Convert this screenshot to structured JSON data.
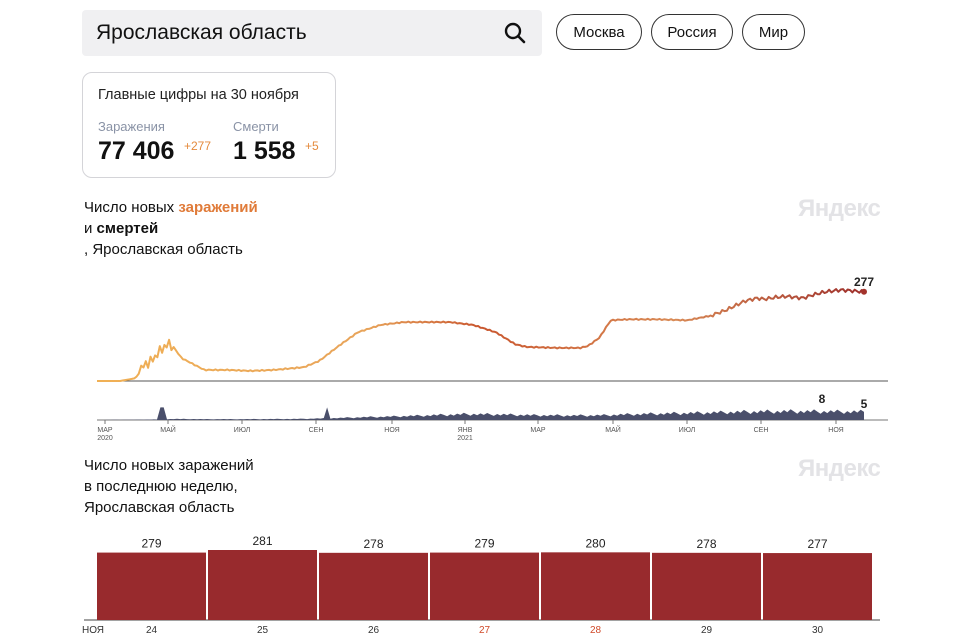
{
  "search": {
    "query": "Ярославская область"
  },
  "regions": [
    "Москва",
    "Россия",
    "Мир"
  ],
  "summary": {
    "title": "Главные цифры на 30 ноября",
    "infections_label": "Заражения",
    "infections_value": "77 406",
    "infections_delta": "+277",
    "deaths_label": "Смерти",
    "deaths_value": "1 558",
    "deaths_delta": "+5"
  },
  "chart1": {
    "title_prefix": "Число новых ",
    "title_accent": "заражений",
    "title_line2_prefix": "и ",
    "title_line2_bold": "смертей",
    "title_line3": ", Ярославская область",
    "brand": "Яндекс"
  },
  "chart2": {
    "title_line1": "Число новых заражений",
    "title_line2": "в последнюю неделю,",
    "title_line3": "Ярославская область",
    "brand": "Яндекс"
  },
  "colors": {
    "accent": "#e07b39",
    "bar": "#982a2d",
    "deaths": "#4a4f6b",
    "infections_end": "#a3332c"
  },
  "chart_data": [
    {
      "type": "line",
      "title": "Число новых заражений и смертей, Ярославская область",
      "x_ticks": [
        "МАР 2020",
        "МАЙ",
        "ИЮЛ",
        "СЕН",
        "НОЯ",
        "ЯНВ 2021",
        "МАР",
        "МАЙ",
        "ИЮЛ",
        "СЕН",
        "НОЯ"
      ],
      "series": [
        {
          "name": "заражения",
          "keypoints": [
            [
              0,
              0
            ],
            [
              0.03,
              0
            ],
            [
              0.05,
              0.03
            ],
            [
              0.07,
              0.25
            ],
            [
              0.09,
              0.35
            ],
            [
              0.095,
              0.43
            ],
            [
              0.11,
              0.25
            ],
            [
              0.14,
              0.12
            ],
            [
              0.17,
              0.12
            ],
            [
              0.2,
              0.11
            ],
            [
              0.23,
              0.12
            ],
            [
              0.27,
              0.15
            ],
            [
              0.29,
              0.22
            ],
            [
              0.315,
              0.38
            ],
            [
              0.34,
              0.53
            ],
            [
              0.37,
              0.61
            ],
            [
              0.4,
              0.64
            ],
            [
              0.46,
              0.64
            ],
            [
              0.49,
              0.61
            ],
            [
              0.52,
              0.53
            ],
            [
              0.545,
              0.4
            ],
            [
              0.56,
              0.37
            ],
            [
              0.6,
              0.36
            ],
            [
              0.63,
              0.36
            ],
            [
              0.64,
              0.38
            ],
            [
              0.655,
              0.47
            ],
            [
              0.665,
              0.6
            ],
            [
              0.67,
              0.66
            ],
            [
              0.69,
              0.67
            ],
            [
              0.73,
              0.67
            ],
            [
              0.77,
              0.66
            ],
            [
              0.8,
              0.71
            ],
            [
              0.82,
              0.77
            ],
            [
              0.845,
              0.87
            ],
            [
              0.86,
              0.9
            ],
            [
              0.87,
              0.89
            ],
            [
              0.885,
              0.91
            ],
            [
              0.9,
              0.92
            ],
            [
              0.92,
              0.9
            ],
            [
              0.935,
              0.94
            ],
            [
              0.95,
              0.97
            ],
            [
              0.97,
              0.99
            ],
            [
              0.985,
              0.98
            ],
            [
              1.0,
              0.97
            ]
          ],
          "last_value": 277
        },
        {
          "name": "смерти",
          "keypoints": [
            [
              0,
              0
            ],
            [
              0.08,
              0.05
            ],
            [
              0.1,
              0.1
            ],
            [
              0.14,
              0.08
            ],
            [
              0.2,
              0.08
            ],
            [
              0.26,
              0.1
            ],
            [
              0.3,
              0.16
            ],
            [
              0.34,
              0.25
            ],
            [
              0.38,
              0.32
            ],
            [
              0.44,
              0.46
            ],
            [
              0.48,
              0.55
            ],
            [
              0.52,
              0.53
            ],
            [
              0.57,
              0.45
            ],
            [
              0.62,
              0.42
            ],
            [
              0.66,
              0.45
            ],
            [
              0.7,
              0.55
            ],
            [
              0.75,
              0.62
            ],
            [
              0.8,
              0.7
            ],
            [
              0.85,
              0.78
            ],
            [
              0.9,
              0.82
            ],
            [
              0.95,
              0.8
            ],
            [
              1.0,
              0.78
            ]
          ],
          "last_value": 5,
          "annotated_value": 8
        }
      ]
    },
    {
      "type": "bar",
      "title": "Число новых заражений в последнюю неделю, Ярославская область",
      "month_label": "НОЯ",
      "categories": [
        "24",
        "25",
        "26",
        "27",
        "28",
        "29",
        "30"
      ],
      "weekend": [
        "27",
        "28"
      ],
      "values": [
        279,
        281,
        278,
        279,
        280,
        278,
        277
      ]
    }
  ]
}
